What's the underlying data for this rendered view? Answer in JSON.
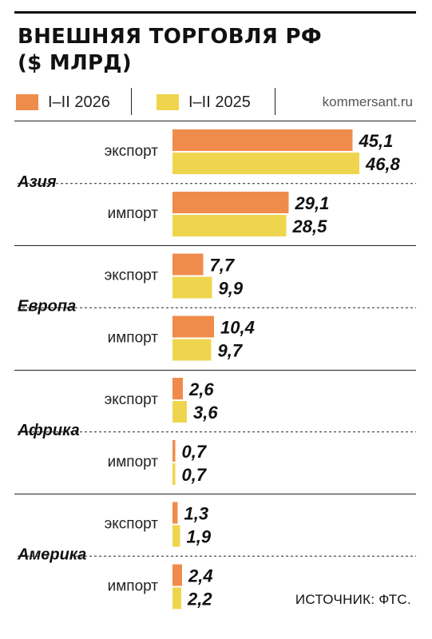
{
  "title": "ВНЕШНЯЯ ТОРГОВЛЯ РФ\n($ МЛРД)",
  "source_site": "kommersant.ru",
  "footer": "ИСТОЧНИК: ФТС.",
  "colors": {
    "current": "#F08C4B",
    "previous": "#EFD54E"
  },
  "chart_data": {
    "type": "bar",
    "orientation": "horizontal",
    "title": "ВНЕШНЯЯ ТОРГОВЛЯ РФ ($ МЛРД)",
    "legend_placement": "top",
    "series": [
      {
        "name": "I–II 2026",
        "color": "#F08C4B"
      },
      {
        "name": "I–II 2025",
        "color": "#EFD54E"
      }
    ],
    "regions": [
      {
        "name": "Азия",
        "flows": [
          {
            "label": "экспорт",
            "values": [
              45.1,
              46.8
            ],
            "value_labels": [
              "45,1",
              "46,8"
            ]
          },
          {
            "label": "импорт",
            "values": [
              29.1,
              28.5
            ],
            "value_labels": [
              "29,1",
              "28,5"
            ]
          }
        ]
      },
      {
        "name": "Европа",
        "flows": [
          {
            "label": "экспорт",
            "values": [
              7.7,
              9.9
            ],
            "value_labels": [
              "7,7",
              "9,9"
            ]
          },
          {
            "label": "импорт",
            "values": [
              10.4,
              9.7
            ],
            "value_labels": [
              "10,4",
              "9,7"
            ]
          }
        ]
      },
      {
        "name": "Африка",
        "flows": [
          {
            "label": "экспорт",
            "values": [
              2.6,
              3.6
            ],
            "value_labels": [
              "2,6",
              "3,6"
            ]
          },
          {
            "label": "импорт",
            "values": [
              0.7,
              0.7
            ],
            "value_labels": [
              "0,7",
              "0,7"
            ]
          }
        ]
      },
      {
        "name": "Америка",
        "flows": [
          {
            "label": "экспорт",
            "values": [
              1.3,
              1.9
            ],
            "value_labels": [
              "1,3",
              "1,9"
            ]
          },
          {
            "label": "импорт",
            "values": [
              2.4,
              2.2
            ],
            "value_labels": [
              "2,4",
              "2,2"
            ]
          }
        ]
      }
    ],
    "xlim": [
      0,
      50
    ],
    "grid": false
  }
}
